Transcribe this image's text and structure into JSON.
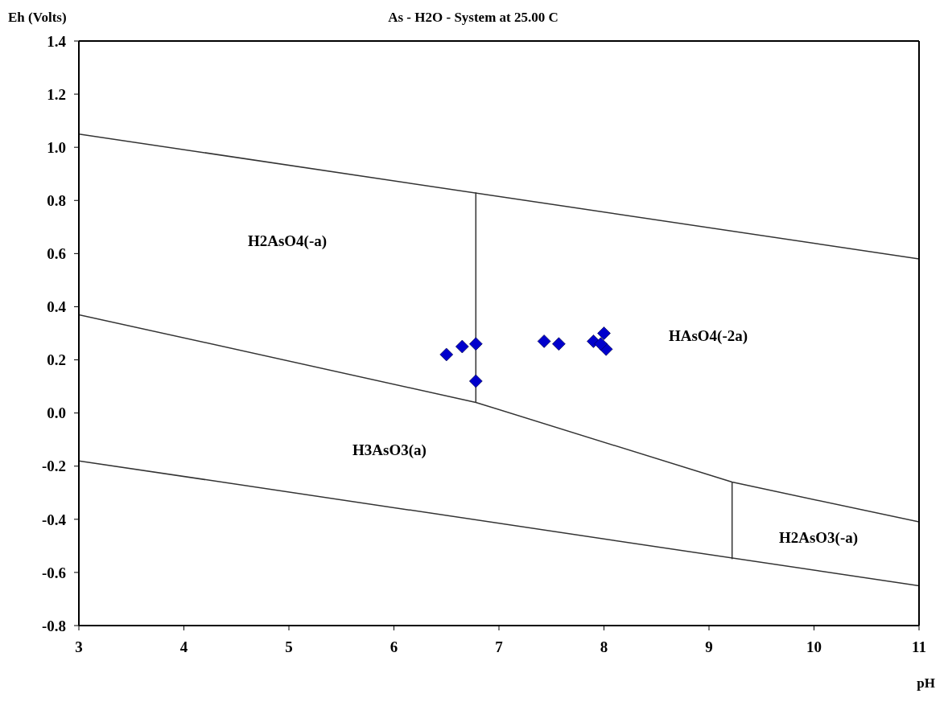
{
  "chart_data": {
    "type": "line",
    "title": "As - H2O - System at 25.00 C",
    "xlabel": "pH",
    "ylabel": "Eh (Volts)",
    "xlim": [
      3,
      11
    ],
    "xticks": [
      3,
      4,
      5,
      6,
      7,
      8,
      9,
      10,
      11
    ],
    "ylim": [
      -0.8,
      1.4
    ],
    "yticks": [
      {
        "value": -0.8,
        "label": "-0.8"
      },
      -0.6,
      -0.4,
      -0.2,
      {
        "value": 0,
        "label": "0.0"
      },
      0.2,
      0.4,
      0.6,
      0.8,
      {
        "value": 1,
        "label": "1.0"
      },
      1.2,
      1.4
    ],
    "grid": false,
    "line_style": "solid",
    "series": [
      {
        "color": "#333333",
        "x": [
          3,
          11
        ],
        "values": [
          1.05,
          0.58
        ],
        "marker": "none"
      },
      {
        "color": "#333333",
        "x": [
          3,
          11
        ],
        "values": [
          -0.18,
          -0.65
        ],
        "marker": "none"
      },
      {
        "color": "#333333",
        "x": [
          3,
          6.78,
          9.22,
          11
        ],
        "values": [
          0.37,
          0.04,
          -0.26,
          -0.41
        ],
        "marker": "none"
      },
      {
        "color": "#333333",
        "x": [
          6.78,
          6.78
        ],
        "values": [
          0.04,
          0.83
        ],
        "marker": "none"
      },
      {
        "color": "#333333",
        "x": [
          9.22,
          9.22
        ],
        "values": [
          -0.26,
          -0.55
        ],
        "marker": "none"
      },
      {
        "type": "scatter",
        "color": "#0000cc",
        "marker": "diamond",
        "x": [
          6.5,
          6.65,
          6.78,
          6.78,
          7.43,
          7.57,
          7.9,
          8.0,
          8.02,
          7.97
        ],
        "values": [
          0.22,
          0.25,
          0.26,
          0.12,
          0.27,
          0.26,
          0.27,
          0.3,
          0.24,
          0.26
        ]
      }
    ],
    "annotations": [
      "H2AsO4(-a)",
      "HAsO4(-2a)",
      "H3AsO3(a)",
      "H2AsO3(-a)"
    ]
  }
}
